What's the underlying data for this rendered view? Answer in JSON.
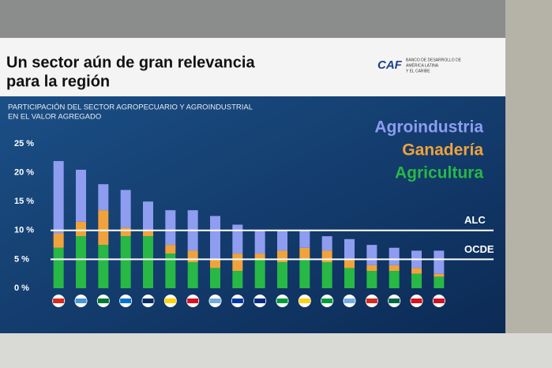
{
  "slide": {
    "title": [
      "Un sector aún de gran relevancia",
      "para la región"
    ],
    "subtitle": [
      "PARTICIPACIÓN DEL SECTOR AGROPECUARIO Y AGROINDUSTRIAL",
      "EN EL VALOR AGREGADO"
    ],
    "logo": "CAF",
    "logo_text": [
      "BANCO DE DESARROLLO DE",
      "AMÉRICA LATINA",
      "Y EL CARIBE"
    ]
  },
  "chart_data": {
    "type": "stacked_bar",
    "categories": [
      null,
      null,
      null,
      null,
      null,
      null,
      null,
      null,
      null,
      null,
      null,
      null,
      null,
      null,
      null,
      null,
      null,
      null
    ],
    "series": [
      {
        "name": "Agroindustria",
        "color": "#8e9df0",
        "values": [
          12.5,
          9,
          4.5,
          6.5,
          5,
          6,
          7,
          7.5,
          5,
          4,
          3.5,
          3,
          2.5,
          3.5,
          3.5,
          3,
          3,
          4
        ]
      },
      {
        "name": "Ganadería",
        "color": "#f0a33c",
        "values": [
          2.5,
          2.5,
          6,
          1.5,
          1,
          1.5,
          2,
          1.5,
          3,
          1,
          2,
          2,
          2,
          1.5,
          1,
          1,
          1,
          0.5
        ]
      },
      {
        "name": "Agricultura",
        "color": "#27b845",
        "values": [
          7,
          9,
          7.5,
          9,
          9,
          6,
          4.5,
          3.5,
          3,
          5,
          4.5,
          5,
          4.5,
          3.5,
          3,
          3,
          2.5,
          2
        ]
      }
    ],
    "ylim": [
      0,
      25
    ],
    "yticks": [
      {
        "value": 0,
        "label": "0 %"
      },
      {
        "value": 5,
        "label": "5 %"
      },
      {
        "value": 10,
        "label": "10 %"
      },
      {
        "value": 15,
        "label": "15 %"
      },
      {
        "value": 20,
        "label": "20 %"
      },
      {
        "value": 25,
        "label": "25 %"
      }
    ],
    "reference_lines": [
      {
        "label": "ALC",
        "value": 10
      },
      {
        "label": "OCDE",
        "value": 5
      }
    ],
    "legend": "top-right"
  }
}
